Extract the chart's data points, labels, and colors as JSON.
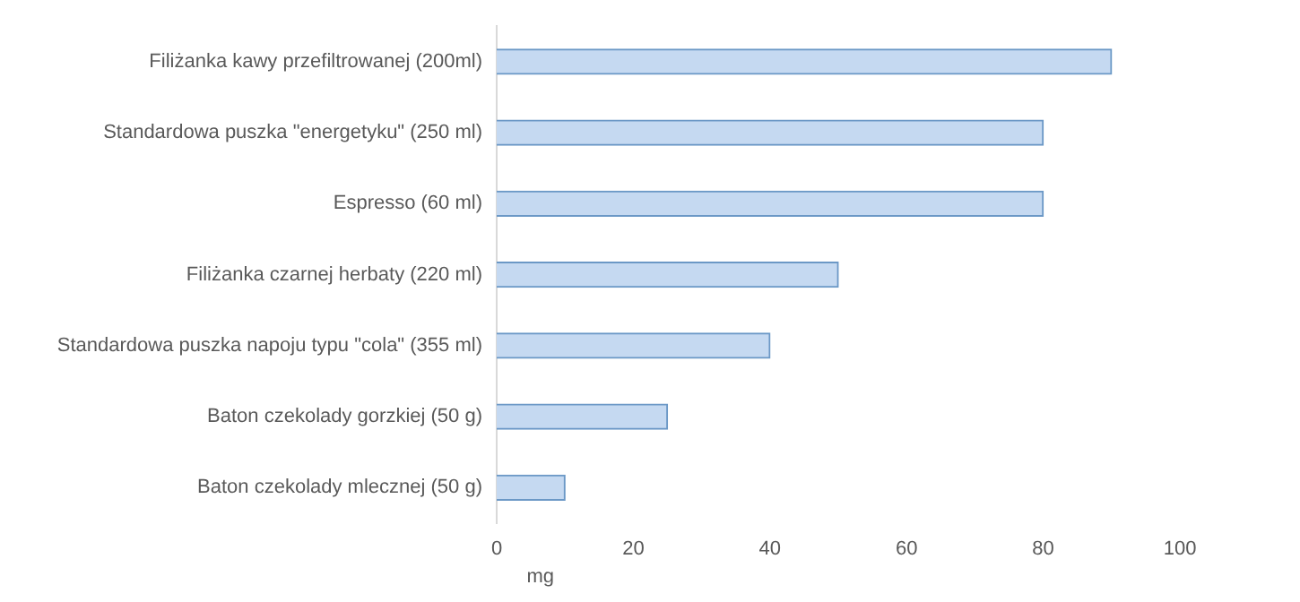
{
  "chart_data": {
    "type": "bar",
    "orientation": "horizontal",
    "xlabel": "mg",
    "categories": [
      "Filiżanka kawy przefiltrowanej (200ml)",
      "Standardowa puszka \"energetyku\" (250 ml)",
      "Espresso (60 ml)",
      "Filiżanka czarnej herbaty (220 ml)",
      "Standardowa puszka napoju typu \"cola\" (355 ml)",
      "Baton czekolady gorzkiej (50 g)",
      "Baton czekolady mlecznej (50 g)"
    ],
    "values": [
      90,
      80,
      80,
      50,
      40,
      25,
      10
    ],
    "color": "#c5d9f1",
    "xlim": [
      0,
      100
    ],
    "xticks": [
      0,
      20,
      40,
      60,
      80,
      100
    ],
    "grid": false,
    "legend": false
  }
}
